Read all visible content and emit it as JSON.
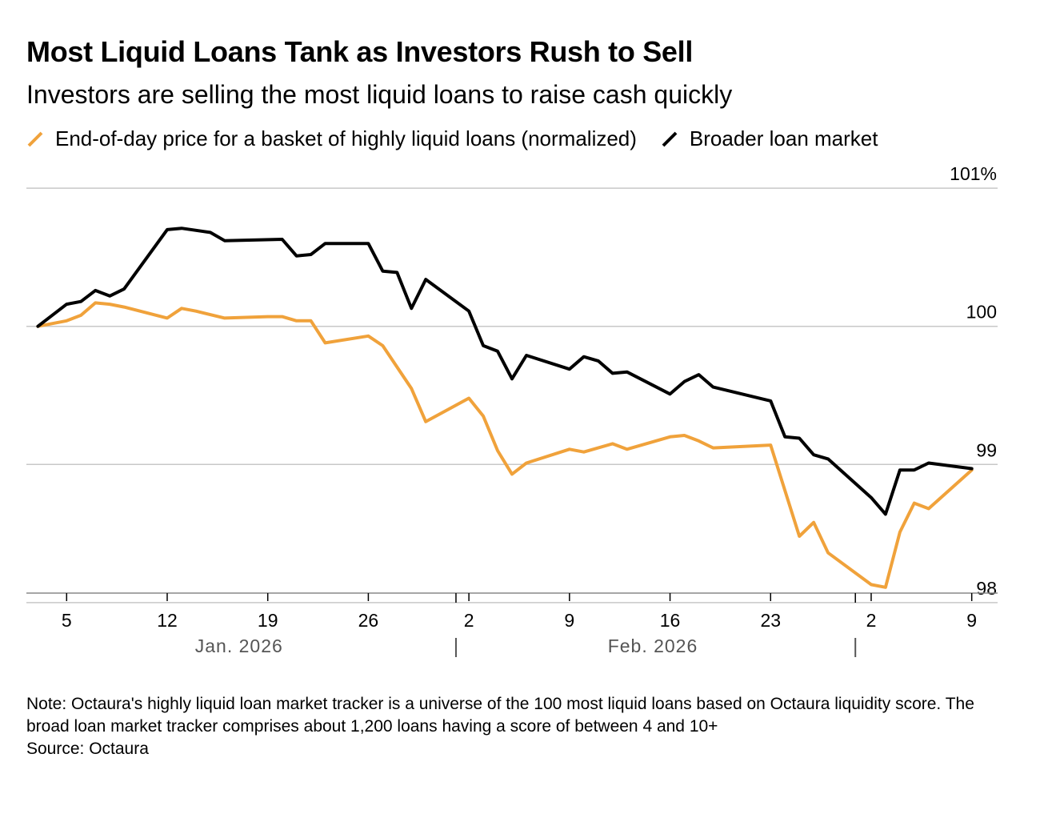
{
  "title": "Most Liquid Loans Tank as Investors Rush to Sell",
  "subtitle": "Investors are selling the most liquid loans to raise cash quickly",
  "legend": [
    {
      "label": "End-of-day price for a basket of highly liquid loans (normalized)",
      "color": "#f0a23b"
    },
    {
      "label": "Broader loan market",
      "color": "#000000"
    }
  ],
  "note": "Note: Octaura's highly liquid loan market tracker is a universe of the 100 most liquid loans based on Octaura liquidity score. The broad loan market tracker comprises about 1,200 loans having a score of between 4 and 10+",
  "source": "Source: Octaura",
  "chart_data": {
    "type": "line",
    "title": "Most Liquid Loans Tank as Investors Rush to Sell",
    "subtitle": "Investors are selling the most liquid loans to raise cash quickly",
    "x_unit": "days since Jan. 1, 2026",
    "xlim": [
      1.2,
      68.8
    ],
    "ylim": [
      97.97,
      101.03
    ],
    "y_ticks": [
      {
        "value": 101,
        "label": "101%"
      },
      {
        "value": 100,
        "label": "100"
      },
      {
        "value": 99,
        "label": "99"
      },
      {
        "value": 98,
        "label": "98"
      }
    ],
    "x_ticks": [
      {
        "x": 4,
        "label": "5"
      },
      {
        "x": 11,
        "label": "12"
      },
      {
        "x": 18,
        "label": "19"
      },
      {
        "x": 25,
        "label": "26"
      },
      {
        "x": 32,
        "label": "2"
      },
      {
        "x": 39,
        "label": "9"
      },
      {
        "x": 46,
        "label": "16"
      },
      {
        "x": 53,
        "label": "23"
      },
      {
        "x": 60,
        "label": "2"
      },
      {
        "x": 67,
        "label": "9"
      }
    ],
    "month_labels": [
      {
        "x": 16,
        "label": "Jan. 2026"
      },
      {
        "x": 44.8,
        "label": "Feb. 2026"
      }
    ],
    "month_dividers": [
      31.1,
      58.9
    ],
    "grid": true,
    "series": [
      {
        "name": "End-of-day price for a basket of highly liquid loans (normalized)",
        "color": "#f0a23b",
        "points": [
          [
            2,
            100
          ],
          [
            4,
            100.04
          ],
          [
            5,
            100.08
          ],
          [
            6,
            100.17
          ],
          [
            7,
            100.16
          ],
          [
            8,
            100.14
          ],
          [
            11,
            100.06
          ],
          [
            12,
            100.13
          ],
          [
            13,
            100.11
          ],
          [
            15,
            100.06
          ],
          [
            18,
            100.07
          ],
          [
            19,
            100.07
          ],
          [
            20,
            100.04
          ],
          [
            21,
            100.04
          ],
          [
            22,
            99.88
          ],
          [
            25,
            99.93
          ],
          [
            26,
            99.86
          ],
          [
            28,
            99.55
          ],
          [
            29,
            99.31
          ],
          [
            32,
            99.48
          ],
          [
            33,
            99.35
          ],
          [
            34,
            99.1
          ],
          [
            35,
            98.93
          ],
          [
            36,
            99.01
          ],
          [
            39,
            99.11
          ],
          [
            40,
            99.09
          ],
          [
            42,
            99.15
          ],
          [
            43,
            99.11
          ],
          [
            46,
            99.2
          ],
          [
            47,
            99.21
          ],
          [
            48,
            99.17
          ],
          [
            49,
            99.12
          ],
          [
            53,
            99.14
          ],
          [
            55,
            98.48
          ],
          [
            56,
            98.58
          ],
          [
            57,
            98.36
          ],
          [
            60,
            98.13
          ],
          [
            61,
            98.11
          ],
          [
            62,
            98.51
          ],
          [
            63,
            98.72
          ],
          [
            64,
            98.68
          ],
          [
            67,
            98.96
          ]
        ]
      },
      {
        "name": "Broader loan market",
        "color": "#000000",
        "points": [
          [
            2,
            100
          ],
          [
            4,
            100.16
          ],
          [
            5,
            100.18
          ],
          [
            6,
            100.26
          ],
          [
            7,
            100.22
          ],
          [
            8,
            100.27
          ],
          [
            11,
            100.7
          ],
          [
            12,
            100.71
          ],
          [
            14,
            100.68
          ],
          [
            15,
            100.62
          ],
          [
            19,
            100.63
          ],
          [
            20,
            100.51
          ],
          [
            21,
            100.52
          ],
          [
            22,
            100.6
          ],
          [
            25,
            100.6
          ],
          [
            26,
            100.4
          ],
          [
            27,
            100.39
          ],
          [
            28,
            100.13
          ],
          [
            29,
            100.34
          ],
          [
            32,
            100.11
          ],
          [
            33,
            99.86
          ],
          [
            34,
            99.82
          ],
          [
            35,
            99.62
          ],
          [
            36,
            99.79
          ],
          [
            39,
            99.69
          ],
          [
            40,
            99.78
          ],
          [
            41,
            99.75
          ],
          [
            42,
            99.66
          ],
          [
            43,
            99.67
          ],
          [
            46,
            99.51
          ],
          [
            47,
            99.6
          ],
          [
            48,
            99.65
          ],
          [
            49,
            99.56
          ],
          [
            53,
            99.46
          ],
          [
            54,
            99.2
          ],
          [
            55,
            99.19
          ],
          [
            56,
            99.07
          ],
          [
            57,
            99.04
          ],
          [
            60,
            98.76
          ],
          [
            61,
            98.64
          ],
          [
            62,
            98.96
          ],
          [
            63,
            98.96
          ],
          [
            64,
            99.01
          ],
          [
            67,
            98.97
          ]
        ]
      }
    ]
  }
}
